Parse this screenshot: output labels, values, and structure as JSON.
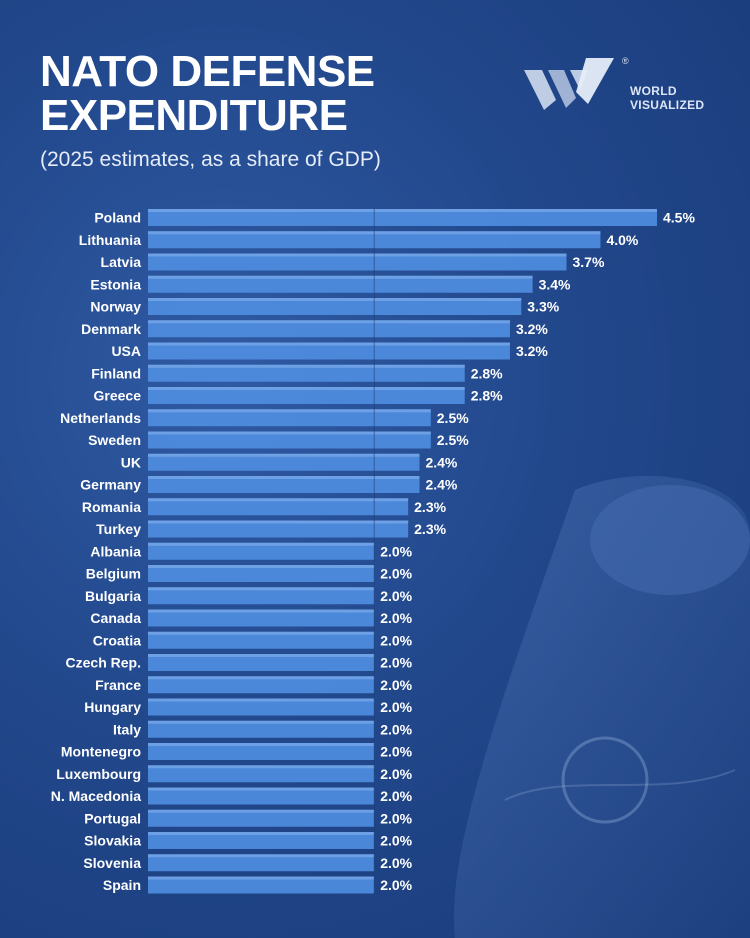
{
  "header": {
    "title_line1": "NATO DEFENSE",
    "title_line2": "EXPENDITURE",
    "subtitle": "(2025 estimates, as a share of GDP)"
  },
  "logo": {
    "line1": "WORLD",
    "line2": "VISUALIZED",
    "registered": "®"
  },
  "colors": {
    "background": "#22488c",
    "bar": "#4f8de0",
    "label": "#ffffff"
  },
  "chart_data": {
    "type": "bar",
    "orientation": "horizontal",
    "unit": "%",
    "categories": [
      "Poland",
      "Lithuania",
      "Latvia",
      "Estonia",
      "Norway",
      "Denmark",
      "USA",
      "Finland",
      "Greece",
      "Netherlands",
      "Sweden",
      "UK",
      "Germany",
      "Romania",
      "Turkey",
      "Albania",
      "Belgium",
      "Bulgaria",
      "Canada",
      "Croatia",
      "Czech Rep.",
      "France",
      "Hungary",
      "Italy",
      "Montenegro",
      "Luxembourg",
      "N. Macedonia",
      "Portugal",
      "Slovakia",
      "Slovenia",
      "Spain"
    ],
    "values": [
      4.5,
      4.0,
      3.7,
      3.4,
      3.3,
      3.2,
      3.2,
      2.8,
      2.8,
      2.5,
      2.5,
      2.4,
      2.4,
      2.3,
      2.3,
      2.0,
      2.0,
      2.0,
      2.0,
      2.0,
      2.0,
      2.0,
      2.0,
      2.0,
      2.0,
      2.0,
      2.0,
      2.0,
      2.0,
      2.0,
      2.0
    ],
    "value_labels": [
      "4.5%",
      "4.0%",
      "3.7%",
      "3.4%",
      "3.3%",
      "3.2%",
      "3.2%",
      "2.8%",
      "2.8%",
      "2.5%",
      "2.5%",
      "2.4%",
      "2.4%",
      "2.3%",
      "2.3%",
      "2.0%",
      "2.0%",
      "2.0%",
      "2.0%",
      "2.0%",
      "2.0%",
      "2.0%",
      "2.0%",
      "2.0%",
      "2.0%",
      "2.0%",
      "2.0%",
      "2.0%",
      "2.0%",
      "2.0%",
      "2.0%"
    ],
    "xlim": [
      0,
      4.5
    ],
    "grid": false,
    "legend": "none",
    "reference_line": 2.0
  }
}
